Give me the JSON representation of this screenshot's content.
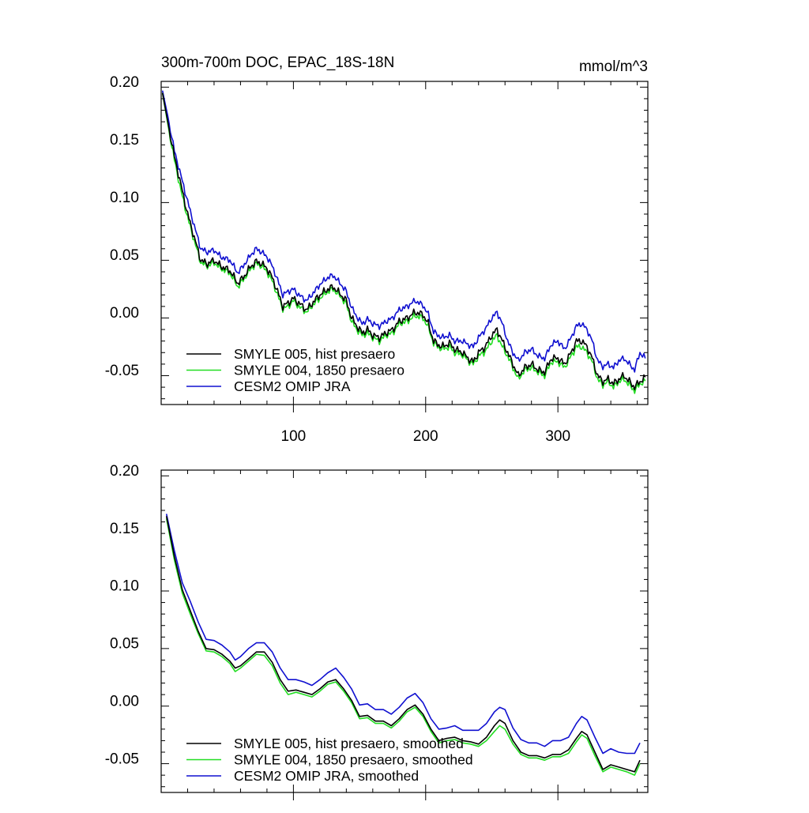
{
  "colors": {
    "black": "#000000",
    "green": "#22dd22",
    "blue": "#1010d0",
    "axis": "#000000",
    "background": "#ffffff"
  },
  "chart_data": [
    {
      "type": "line",
      "title": "300m-700m DOC, EPAC_18S-18N",
      "units_label": "mmol/m^3",
      "xlabel": "",
      "ylabel": "",
      "xlim": [
        0,
        368
      ],
      "ylim": [
        -0.08,
        0.2
      ],
      "xticks": [
        100,
        200,
        300
      ],
      "xtick_labels": [
        "100",
        "200",
        "300"
      ],
      "yticks": [
        0.2,
        0.15,
        0.1,
        0.05,
        0.0,
        -0.05
      ],
      "ytick_labels": [
        "0.20",
        "0.15",
        "0.10",
        "0.05",
        "0.00",
        "-0.05"
      ],
      "legend_position": "bottom-left",
      "series": [
        {
          "name": "SMYLE 005, hist presaero",
          "color": "#000000"
        },
        {
          "name": "SMYLE 004, 1850 presaero",
          "color": "#22dd22"
        },
        {
          "name": "CESM2 OMIP JRA",
          "color": "#1010d0"
        }
      ],
      "anchors": {
        "x": [
          1,
          5,
          10,
          15,
          20,
          25,
          30,
          35,
          40,
          45,
          52,
          58,
          62,
          68,
          72,
          76,
          80,
          84,
          88,
          92,
          96,
          100,
          104,
          110,
          116,
          120,
          126,
          130,
          136,
          140,
          144,
          148,
          152,
          156,
          160,
          165,
          170,
          175,
          180,
          186,
          192,
          198,
          202,
          206,
          212,
          218,
          222,
          228,
          232,
          236,
          240,
          245,
          250,
          254,
          258,
          262,
          266,
          270,
          275,
          280,
          285,
          290,
          295,
          300,
          305,
          310,
          314,
          318,
          322,
          326,
          330,
          334,
          338,
          342,
          346,
          350,
          354,
          358,
          362,
          366
        ],
        "SMYLE 005, hist presaero": [
          0.19,
          0.165,
          0.135,
          0.11,
          0.085,
          0.065,
          0.045,
          0.042,
          0.045,
          0.04,
          0.036,
          0.025,
          0.03,
          0.04,
          0.044,
          0.042,
          0.038,
          0.03,
          0.018,
          0.005,
          0.008,
          0.012,
          0.008,
          0.002,
          0.01,
          0.015,
          0.02,
          0.022,
          0.015,
          0.01,
          -0.005,
          -0.012,
          -0.018,
          -0.015,
          -0.02,
          -0.022,
          -0.018,
          -0.015,
          -0.008,
          -0.005,
          0.0,
          -0.002,
          -0.01,
          -0.025,
          -0.03,
          -0.027,
          -0.032,
          -0.035,
          -0.04,
          -0.043,
          -0.035,
          -0.03,
          -0.02,
          -0.015,
          -0.025,
          -0.035,
          -0.045,
          -0.055,
          -0.048,
          -0.045,
          -0.05,
          -0.052,
          -0.04,
          -0.04,
          -0.045,
          -0.035,
          -0.025,
          -0.025,
          -0.03,
          -0.04,
          -0.055,
          -0.06,
          -0.058,
          -0.062,
          -0.058,
          -0.055,
          -0.06,
          -0.065,
          -0.06,
          -0.057
        ],
        "SMYLE 004, 1850 presaero": [
          0.19,
          0.163,
          0.132,
          0.105,
          0.082,
          0.062,
          0.043,
          0.04,
          0.043,
          0.038,
          0.034,
          0.022,
          0.028,
          0.038,
          0.042,
          0.04,
          0.035,
          0.027,
          0.015,
          0.003,
          0.005,
          0.01,
          0.005,
          0.0,
          0.008,
          0.012,
          0.018,
          0.02,
          0.013,
          0.007,
          -0.008,
          -0.015,
          -0.02,
          -0.018,
          -0.022,
          -0.025,
          -0.02,
          -0.018,
          -0.01,
          -0.008,
          -0.003,
          -0.005,
          -0.013,
          -0.027,
          -0.032,
          -0.03,
          -0.035,
          -0.037,
          -0.042,
          -0.045,
          -0.038,
          -0.034,
          -0.025,
          -0.02,
          -0.03,
          -0.038,
          -0.048,
          -0.058,
          -0.05,
          -0.048,
          -0.052,
          -0.055,
          -0.043,
          -0.043,
          -0.048,
          -0.038,
          -0.03,
          -0.03,
          -0.035,
          -0.043,
          -0.058,
          -0.063,
          -0.06,
          -0.065,
          -0.06,
          -0.058,
          -0.063,
          -0.068,
          -0.062,
          -0.06
        ],
        "CESM2 OMIP JRA": [
          0.192,
          0.17,
          0.14,
          0.118,
          0.096,
          0.075,
          0.055,
          0.052,
          0.054,
          0.048,
          0.045,
          0.034,
          0.04,
          0.05,
          0.055,
          0.052,
          0.048,
          0.04,
          0.028,
          0.015,
          0.018,
          0.02,
          0.015,
          0.01,
          0.018,
          0.024,
          0.03,
          0.032,
          0.024,
          0.018,
          0.004,
          -0.004,
          -0.01,
          -0.006,
          -0.01,
          -0.012,
          -0.008,
          -0.005,
          0.002,
          0.005,
          0.01,
          0.006,
          -0.002,
          -0.017,
          -0.022,
          -0.02,
          -0.025,
          -0.025,
          -0.028,
          -0.03,
          -0.022,
          -0.015,
          -0.005,
          0.0,
          -0.01,
          -0.025,
          -0.035,
          -0.042,
          -0.035,
          -0.032,
          -0.038,
          -0.04,
          -0.028,
          -0.025,
          -0.032,
          -0.022,
          -0.012,
          -0.01,
          -0.015,
          -0.025,
          -0.042,
          -0.047,
          -0.045,
          -0.048,
          -0.042,
          -0.04,
          -0.045,
          -0.05,
          -0.035,
          -0.04
        ]
      }
    },
    {
      "type": "line",
      "title": "",
      "units_label": "",
      "xlabel": "",
      "ylabel": "",
      "xlim": [
        0,
        368
      ],
      "ylim": [
        -0.08,
        0.2
      ],
      "xticks": [
        100,
        200,
        300
      ],
      "xtick_labels": [],
      "yticks": [
        0.2,
        0.15,
        0.1,
        0.05,
        0.0,
        -0.05
      ],
      "ytick_labels": [
        "0.20",
        "0.15",
        "0.10",
        "0.05",
        "0.00",
        "-0.05"
      ],
      "legend_position": "bottom-left",
      "series": [
        {
          "name": "SMYLE 005, hist presaero, smoothed",
          "color": "#000000"
        },
        {
          "name": "SMYLE 004, 1850 presaero, smoothed",
          "color": "#22dd22"
        },
        {
          "name": "CESM2 OMIP JRA, smoothed",
          "color": "#1010d0"
        }
      ],
      "anchors": {
        "x": [
          4,
          10,
          16,
          22,
          28,
          34,
          40,
          46,
          52,
          56,
          60,
          66,
          72,
          78,
          84,
          90,
          96,
          102,
          108,
          114,
          120,
          126,
          132,
          138,
          144,
          150,
          156,
          162,
          168,
          174,
          180,
          186,
          192,
          198,
          204,
          210,
          216,
          222,
          228,
          234,
          240,
          246,
          252,
          256,
          260,
          266,
          272,
          278,
          284,
          290,
          296,
          302,
          308,
          314,
          318,
          322,
          328,
          334,
          340,
          346,
          352,
          358,
          362
        ],
        "SMYLE 005, hist presaero, smoothed": [
          0.16,
          0.125,
          0.096,
          0.078,
          0.06,
          0.045,
          0.044,
          0.04,
          0.034,
          0.028,
          0.03,
          0.036,
          0.042,
          0.042,
          0.033,
          0.018,
          0.008,
          0.009,
          0.007,
          0.005,
          0.01,
          0.016,
          0.018,
          0.01,
          0.0,
          -0.014,
          -0.013,
          -0.018,
          -0.018,
          -0.022,
          -0.016,
          -0.008,
          -0.004,
          -0.012,
          -0.025,
          -0.035,
          -0.033,
          -0.032,
          -0.035,
          -0.036,
          -0.038,
          -0.032,
          -0.022,
          -0.017,
          -0.02,
          -0.035,
          -0.045,
          -0.048,
          -0.048,
          -0.05,
          -0.047,
          -0.047,
          -0.043,
          -0.033,
          -0.027,
          -0.03,
          -0.045,
          -0.06,
          -0.056,
          -0.058,
          -0.06,
          -0.062,
          -0.052
        ],
        "SMYLE 004, 1850 presaero, smoothed": [
          0.158,
          0.122,
          0.093,
          0.075,
          0.058,
          0.043,
          0.042,
          0.038,
          0.032,
          0.025,
          0.028,
          0.034,
          0.04,
          0.039,
          0.03,
          0.015,
          0.005,
          0.007,
          0.005,
          0.003,
          0.008,
          0.014,
          0.016,
          0.008,
          -0.002,
          -0.016,
          -0.015,
          -0.02,
          -0.02,
          -0.024,
          -0.018,
          -0.01,
          -0.006,
          -0.014,
          -0.027,
          -0.037,
          -0.035,
          -0.034,
          -0.037,
          -0.038,
          -0.04,
          -0.035,
          -0.027,
          -0.022,
          -0.025,
          -0.038,
          -0.047,
          -0.05,
          -0.05,
          -0.052,
          -0.049,
          -0.049,
          -0.046,
          -0.036,
          -0.03,
          -0.033,
          -0.048,
          -0.062,
          -0.058,
          -0.06,
          -0.062,
          -0.065,
          -0.055
        ],
        "CESM2 OMIP JRA, smoothed": [
          0.162,
          0.13,
          0.102,
          0.086,
          0.068,
          0.053,
          0.052,
          0.048,
          0.042,
          0.035,
          0.038,
          0.045,
          0.05,
          0.05,
          0.042,
          0.028,
          0.018,
          0.018,
          0.016,
          0.013,
          0.018,
          0.024,
          0.028,
          0.02,
          0.01,
          -0.004,
          -0.003,
          -0.008,
          -0.008,
          -0.012,
          -0.006,
          0.002,
          0.006,
          -0.002,
          -0.016,
          -0.025,
          -0.024,
          -0.022,
          -0.026,
          -0.026,
          -0.026,
          -0.02,
          -0.01,
          -0.006,
          -0.008,
          -0.024,
          -0.034,
          -0.037,
          -0.037,
          -0.04,
          -0.035,
          -0.035,
          -0.032,
          -0.02,
          -0.014,
          -0.017,
          -0.032,
          -0.046,
          -0.042,
          -0.045,
          -0.046,
          -0.046,
          -0.037
        ]
      }
    }
  ]
}
